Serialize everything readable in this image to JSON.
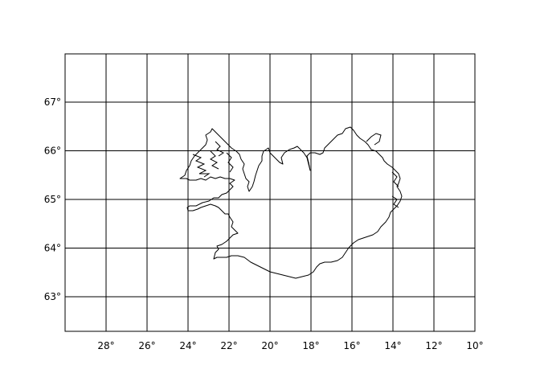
{
  "map": {
    "projection_note": "",
    "lon_labels": [
      "28°",
      "26°",
      "24°",
      "22°",
      "20°",
      "18°",
      "16°",
      "14°",
      "12°",
      "10°"
    ],
    "lat_labels": [
      "67°",
      "66°",
      "65°",
      "64°",
      "63°"
    ],
    "lon_values_west": [
      28,
      26,
      24,
      22,
      20,
      18,
      16,
      14,
      12,
      10
    ],
    "lat_values_north": [
      67,
      66,
      65,
      64,
      63
    ],
    "feature": "Iceland coastline",
    "grid": true,
    "line_color": "#000000",
    "background_color": "#ffffff"
  }
}
